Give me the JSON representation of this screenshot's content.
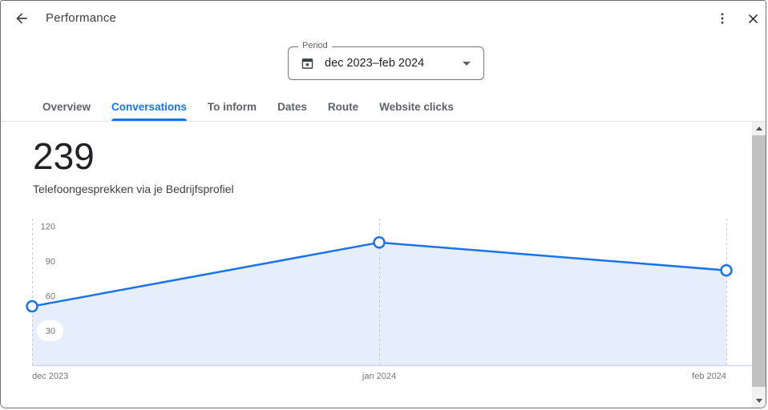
{
  "header": {
    "title": "Performance"
  },
  "period_field": {
    "label": "Period",
    "value": "dec 2023–feb 2024"
  },
  "tabs": [
    {
      "label": "Overview",
      "active": false
    },
    {
      "label": "Conversations",
      "active": true
    },
    {
      "label": "To inform",
      "active": false
    },
    {
      "label": "Dates",
      "active": false
    },
    {
      "label": "Route",
      "active": false
    },
    {
      "label": "Website clicks",
      "active": false
    }
  ],
  "metric": {
    "value": "239",
    "description": "Telefoongesprekken via je Bedrijfsprofiel"
  },
  "chart_data": {
    "type": "line",
    "title": "Telefoongesprekken via je Bedrijfsprofiel",
    "categories": [
      "dec 2023",
      "jan 2024",
      "feb 2024"
    ],
    "values": [
      51,
      106,
      82
    ],
    "total": 239,
    "ylim": [
      0,
      120
    ],
    "yticks": [
      30,
      60,
      90,
      120
    ],
    "xlabel": "",
    "ylabel": "",
    "legend": "none",
    "grid": "dashed-vertical-guides",
    "area_fill": true,
    "markers": "open-circle",
    "line_color": "#1a73e8",
    "area_color": "#e7eefb",
    "guide_color": "#c6c9cc",
    "baseline_color": "#ccd8ee",
    "tick_label_color": "#757575"
  },
  "icons": {
    "back": "arrow-left",
    "menu": "kebab-vertical",
    "close": "x-close",
    "calendar": "calendar",
    "period_caret": "caret-down",
    "scrollbar_up": "caret-up",
    "scrollbar_down": "caret-down"
  },
  "colors": {
    "accent_blue": "#1a73e8",
    "text_primary": "#202124",
    "text_secondary": "#5f6368",
    "divider": "#e1e3e6",
    "scroll_track": "#f1f1f1",
    "scroll_thumb": "#c1c1c1"
  }
}
